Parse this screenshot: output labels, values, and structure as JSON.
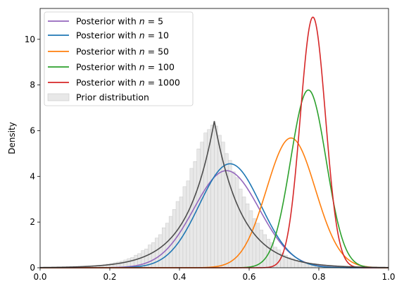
{
  "chart_data": {
    "type": "line",
    "title": "",
    "xlabel": "",
    "ylabel": "Density",
    "xlim": [
      0.0,
      1.0
    ],
    "ylim": [
      0,
      11.35
    ],
    "xticks": [
      "0.0",
      "0.2",
      "0.4",
      "0.6",
      "0.8",
      "1.0"
    ],
    "xtick_values": [
      0.0,
      0.2,
      0.4,
      0.6,
      0.8,
      1.0
    ],
    "yticks": [
      "0",
      "2",
      "4",
      "6",
      "8",
      "10"
    ],
    "ytick_values": [
      0,
      2,
      4,
      6,
      8,
      10
    ],
    "grid": false,
    "legend_position": "upper-left",
    "series": [
      {
        "name": "Posterior with n = 5",
        "label_prefix": "Posterior with ",
        "label_var": "n",
        "label_value": "= 5",
        "color": "#9467bd",
        "dist": "gauss",
        "mean": 0.535,
        "sd": 0.094,
        "peak": 4.25
      },
      {
        "name": "Posterior with n = 10",
        "label_prefix": "Posterior with ",
        "label_var": "n",
        "label_value": "= 10",
        "color": "#1f77b4",
        "dist": "gauss",
        "mean": 0.545,
        "sd": 0.088,
        "peak": 4.55
      },
      {
        "name": "Posterior with n = 50",
        "label_prefix": "Posterior with ",
        "label_var": "n",
        "label_value": "= 50",
        "color": "#ff7f0e",
        "dist": "gauss",
        "mean": 0.72,
        "sd": 0.07,
        "peak": 5.68
      },
      {
        "name": "Posterior with n = 100",
        "label_prefix": "Posterior with ",
        "label_var": "n",
        "label_value": "= 100",
        "color": "#2ca02c",
        "dist": "gauss",
        "mean": 0.77,
        "sd": 0.051,
        "peak": 7.78
      },
      {
        "name": "Posterior with n = 1000",
        "label_prefix": "Posterior with ",
        "label_var": "n",
        "label_value": "= 1000",
        "color": "#d62728",
        "dist": "gauss",
        "mean": 0.783,
        "sd": 0.036,
        "peak": 10.97
      }
    ],
    "prior_curve": {
      "color": "#4d4d4d",
      "dist": "laplace",
      "mean": 0.5,
      "scale": 0.078,
      "peak": 6.42
    },
    "prior_histogram": {
      "name": "Prior distribution",
      "color": "#e8e8e8",
      "edge_color": "#c8c8c8",
      "bins": [
        0.0,
        0.01,
        0.02,
        0.03,
        0.04,
        0.05,
        0.06,
        0.07,
        0.08,
        0.09,
        0.1,
        0.11,
        0.12,
        0.13,
        0.14,
        0.15,
        0.16,
        0.17,
        0.18,
        0.19,
        0.2,
        0.21,
        0.22,
        0.23,
        0.24,
        0.25,
        0.26,
        0.27,
        0.28,
        0.29,
        0.3,
        0.31,
        0.32,
        0.33,
        0.34,
        0.35,
        0.36,
        0.37,
        0.38,
        0.39,
        0.4,
        0.41,
        0.42,
        0.43,
        0.44,
        0.45,
        0.46,
        0.47,
        0.48,
        0.49,
        0.5,
        0.51,
        0.52,
        0.53,
        0.54,
        0.55,
        0.56,
        0.57,
        0.58,
        0.59,
        0.6,
        0.61,
        0.62,
        0.63,
        0.64,
        0.65,
        0.66,
        0.67,
        0.68,
        0.69,
        0.7,
        0.71,
        0.72,
        0.73,
        0.74,
        0.75,
        0.76,
        0.77,
        0.78,
        0.79,
        0.8,
        0.81,
        0.82,
        0.83,
        0.84,
        0.85,
        0.86,
        0.87,
        0.88,
        0.89,
        0.9,
        0.91,
        0.92,
        0.93,
        0.94,
        0.95,
        0.96,
        0.97,
        0.98,
        0.99,
        1.0
      ],
      "heights": [
        0.01,
        0.01,
        0.01,
        0.01,
        0.02,
        0.02,
        0.02,
        0.02,
        0.03,
        0.03,
        0.04,
        0.04,
        0.05,
        0.06,
        0.07,
        0.08,
        0.1,
        0.11,
        0.13,
        0.16,
        0.18,
        0.22,
        0.25,
        0.29,
        0.34,
        0.4,
        0.45,
        0.55,
        0.62,
        0.75,
        0.82,
        1.0,
        1.1,
        1.3,
        1.45,
        1.75,
        1.95,
        2.25,
        2.55,
        2.9,
        3.1,
        3.55,
        3.8,
        4.35,
        4.65,
        5.2,
        5.5,
        5.9,
        6.05,
        6.25,
        6.2,
        5.8,
        5.5,
        5.0,
        4.7,
        4.2,
        3.95,
        3.45,
        3.1,
        2.8,
        2.5,
        2.15,
        1.95,
        1.65,
        1.45,
        1.25,
        1.1,
        0.9,
        0.78,
        0.65,
        0.55,
        0.46,
        0.4,
        0.33,
        0.29,
        0.24,
        0.21,
        0.17,
        0.15,
        0.12,
        0.11,
        0.09,
        0.08,
        0.06,
        0.05,
        0.05,
        0.04,
        0.03,
        0.03,
        0.02,
        0.02,
        0.02,
        0.01,
        0.01,
        0.01,
        0.01,
        0.01,
        0.01,
        0.01,
        0.01
      ]
    }
  }
}
